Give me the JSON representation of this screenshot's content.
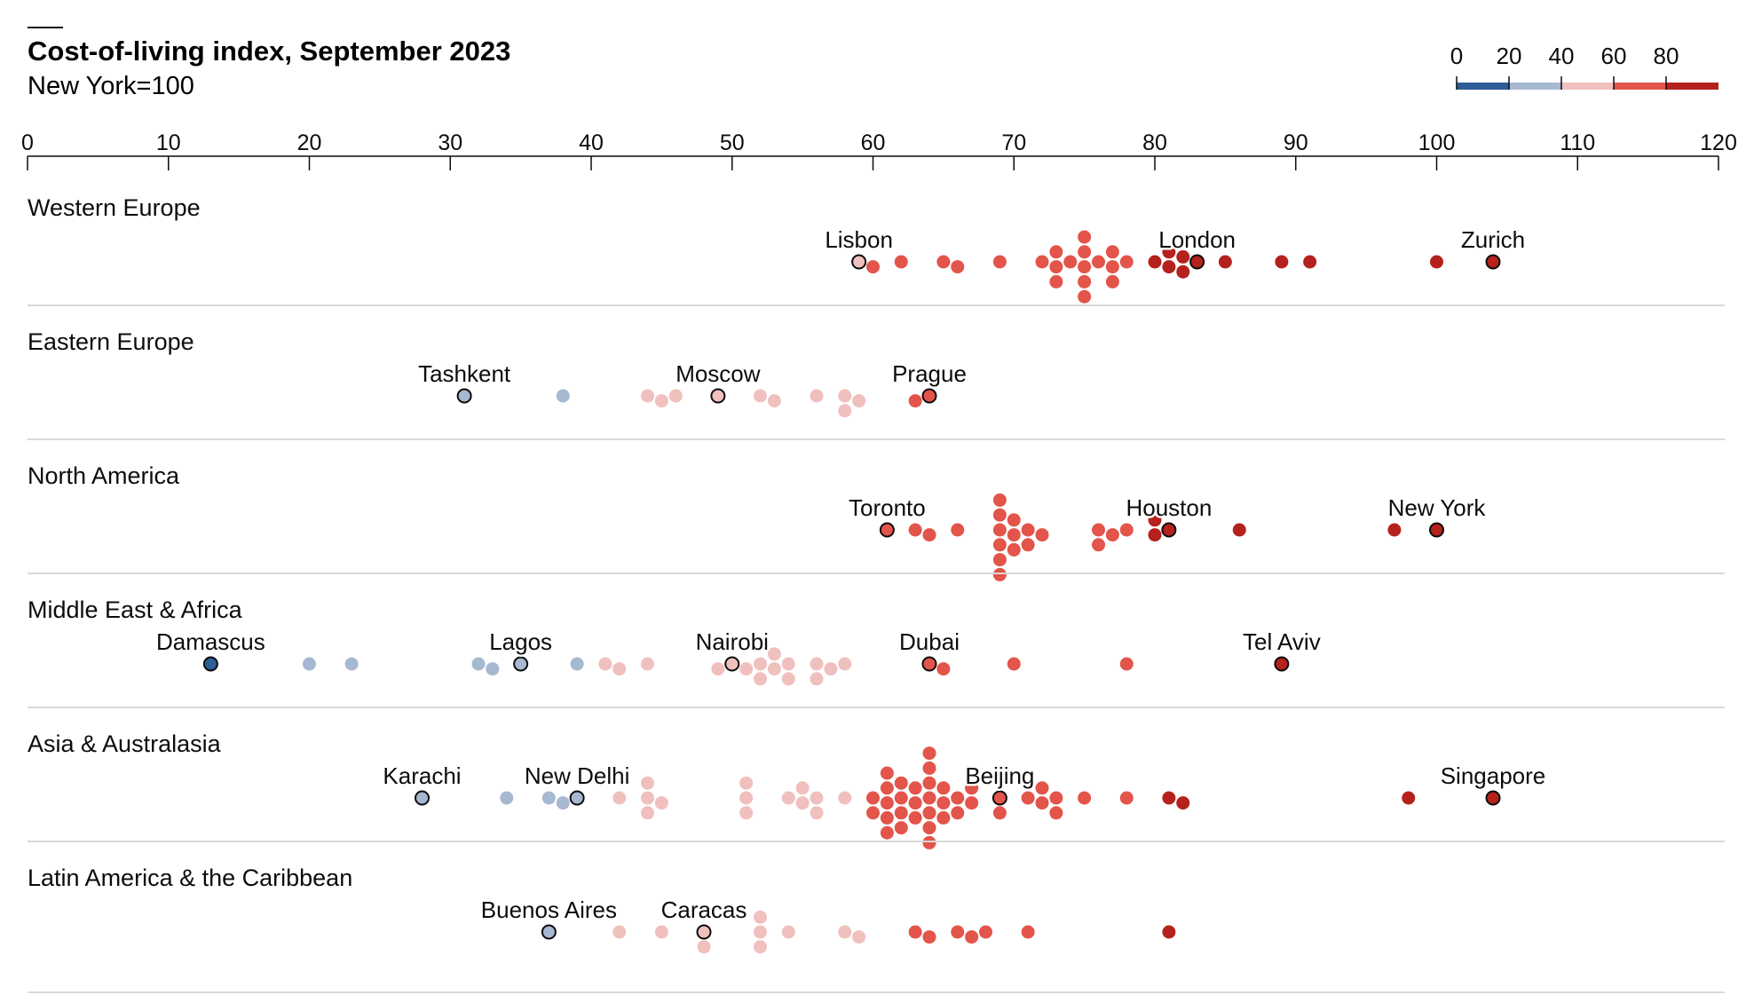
{
  "chart_data": {
    "type": "beeswarm",
    "title": "Cost-of-living index, September 2023",
    "subtitle": "New York=100",
    "x_ticks": [
      0,
      10,
      20,
      30,
      40,
      50,
      60,
      70,
      80,
      90,
      100,
      110,
      120
    ],
    "xlim": [
      0,
      120
    ],
    "legend": {
      "ticks": [
        0,
        20,
        40,
        60,
        80
      ],
      "bins": [
        {
          "from": 0,
          "to": 20,
          "color": "#2e5c97"
        },
        {
          "from": 20,
          "to": 40,
          "color": "#a7b8d1"
        },
        {
          "from": 40,
          "to": 60,
          "color": "#f0c0be"
        },
        {
          "from": 60,
          "to": 80,
          "color": "#e3544a"
        },
        {
          "from": 80,
          "to": 100,
          "color": "#b5211c"
        }
      ]
    },
    "regions": [
      {
        "name": "Western Europe",
        "highlighted": [
          {
            "city": "Lisbon",
            "value": 59
          },
          {
            "city": "London",
            "value": 83
          },
          {
            "city": "Zurich",
            "value": 104
          }
        ],
        "values": [
          60,
          62,
          65,
          66,
          69,
          72,
          73,
          73,
          73,
          74,
          75,
          75,
          75,
          75,
          75,
          76,
          77,
          77,
          77,
          78,
          80,
          81,
          81,
          82,
          82,
          85,
          89,
          91,
          100
        ]
      },
      {
        "name": "Eastern Europe",
        "highlighted": [
          {
            "city": "Tashkent",
            "value": 31
          },
          {
            "city": "Moscow",
            "value": 49
          },
          {
            "city": "Prague",
            "value": 64
          }
        ],
        "values": [
          38,
          44,
          45,
          46,
          52,
          53,
          56,
          58,
          58,
          59,
          63
        ]
      },
      {
        "name": "North America",
        "highlighted": [
          {
            "city": "Toronto",
            "value": 61
          },
          {
            "city": "Houston",
            "value": 81
          },
          {
            "city": "New York",
            "value": 100
          }
        ],
        "values": [
          63,
          64,
          66,
          69,
          69,
          69,
          69,
          69,
          69,
          70,
          70,
          70,
          71,
          71,
          72,
          76,
          76,
          77,
          78,
          80,
          80,
          86,
          97
        ]
      },
      {
        "name": "Middle East & Africa",
        "highlighted": [
          {
            "city": "Damascus",
            "value": 13
          },
          {
            "city": "Lagos",
            "value": 35
          },
          {
            "city": "Nairobi",
            "value": 50
          },
          {
            "city": "Dubai",
            "value": 64
          },
          {
            "city": "Tel Aviv",
            "value": 89
          }
        ],
        "values": [
          20,
          23,
          32,
          33,
          39,
          41,
          42,
          44,
          49,
          51,
          52,
          52,
          53,
          53,
          54,
          54,
          56,
          56,
          57,
          58,
          65,
          70,
          78
        ]
      },
      {
        "name": "Asia & Australasia",
        "highlighted": [
          {
            "city": "Karachi",
            "value": 28
          },
          {
            "city": "New Delhi",
            "value": 39
          },
          {
            "city": "Beijing",
            "value": 69
          },
          {
            "city": "Singapore",
            "value": 104
          }
        ],
        "values": [
          34,
          37,
          38,
          42,
          44,
          44,
          44,
          45,
          51,
          51,
          51,
          54,
          55,
          55,
          56,
          56,
          58,
          60,
          60,
          61,
          61,
          61,
          61,
          61,
          62,
          62,
          62,
          62,
          63,
          63,
          63,
          64,
          64,
          64,
          64,
          64,
          64,
          64,
          65,
          65,
          65,
          66,
          66,
          67,
          67,
          69,
          71,
          72,
          72,
          73,
          73,
          75,
          78,
          81,
          82,
          98
        ]
      },
      {
        "name": "Latin America & the Caribbean",
        "highlighted": [
          {
            "city": "Buenos Aires",
            "value": 37
          },
          {
            "city": "Caracas",
            "value": 48
          }
        ],
        "values": [
          42,
          45,
          48,
          52,
          52,
          52,
          54,
          58,
          59,
          63,
          64,
          66,
          67,
          68,
          71,
          81
        ]
      }
    ]
  }
}
